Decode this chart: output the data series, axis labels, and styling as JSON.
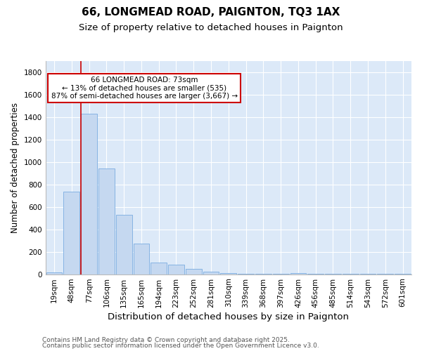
{
  "title1": "66, LONGMEAD ROAD, PAIGNTON, TQ3 1AX",
  "title2": "Size of property relative to detached houses in Paignton",
  "xlabel": "Distribution of detached houses by size in Paignton",
  "ylabel": "Number of detached properties",
  "categories": [
    "19sqm",
    "48sqm",
    "77sqm",
    "106sqm",
    "135sqm",
    "165sqm",
    "194sqm",
    "223sqm",
    "252sqm",
    "281sqm",
    "310sqm",
    "339sqm",
    "368sqm",
    "397sqm",
    "426sqm",
    "456sqm",
    "485sqm",
    "514sqm",
    "543sqm",
    "572sqm",
    "601sqm"
  ],
  "values": [
    18,
    740,
    1435,
    945,
    530,
    275,
    107,
    88,
    48,
    22,
    10,
    4,
    4,
    4,
    8,
    6,
    3,
    2,
    1,
    1,
    1
  ],
  "bar_color": "#c5d8f0",
  "bar_edge_color": "#7aace0",
  "background_color": "#dce9f8",
  "grid_color": "#ffffff",
  "annotation_text": "66 LONGMEAD ROAD: 73sqm\n← 13% of detached houses are smaller (535)\n87% of semi-detached houses are larger (3,667) →",
  "annotation_box_color": "#ffffff",
  "annotation_box_edge": "#cc0000",
  "vline_color": "#cc0000",
  "ylim": [
    0,
    1900
  ],
  "yticks": [
    0,
    200,
    400,
    600,
    800,
    1000,
    1200,
    1400,
    1600,
    1800
  ],
  "footer1": "Contains HM Land Registry data © Crown copyright and database right 2025.",
  "footer2": "Contains public sector information licensed under the Open Government Licence v3.0.",
  "title_fontsize": 11,
  "subtitle_fontsize": 9.5,
  "tick_fontsize": 7.5,
  "ylabel_fontsize": 8.5,
  "xlabel_fontsize": 9.5,
  "footer_fontsize": 6.5
}
